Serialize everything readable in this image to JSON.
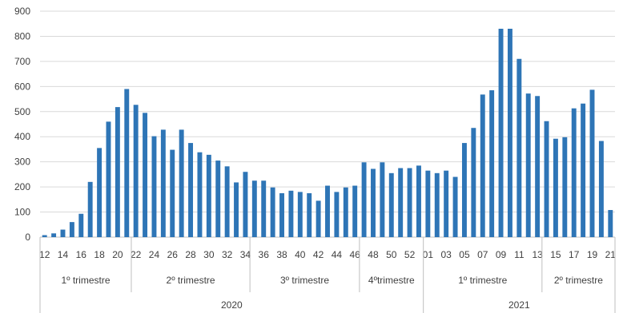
{
  "chart_data": {
    "type": "bar",
    "title": "",
    "xlabel": "",
    "ylabel": "",
    "ylim": [
      0,
      900
    ],
    "y_ticks": [
      0,
      100,
      200,
      300,
      400,
      500,
      600,
      700,
      800,
      900
    ],
    "grid": true,
    "legend": "none",
    "bar_color": "#2e75b6",
    "categories": [
      "12",
      "13",
      "14",
      "15",
      "16",
      "17",
      "18",
      "19",
      "20",
      "21",
      "22",
      "23",
      "24",
      "25",
      "26",
      "27",
      "28",
      "29",
      "30",
      "31",
      "32",
      "33",
      "34",
      "35",
      "36",
      "37",
      "38",
      "39",
      "40",
      "41",
      "42",
      "43",
      "44",
      "45",
      "46",
      "47",
      "48",
      "49",
      "50",
      "51",
      "52",
      "53",
      "01",
      "02",
      "03",
      "04",
      "05",
      "06",
      "07",
      "08",
      "09",
      "10",
      "11",
      "12",
      "13",
      "14",
      "15",
      "16",
      "17",
      "18",
      "19",
      "20",
      "21"
    ],
    "x_tick_labels": [
      "12",
      "14",
      "16",
      "18",
      "20",
      "22",
      "24",
      "26",
      "28",
      "30",
      "32",
      "34",
      "36",
      "38",
      "40",
      "42",
      "44",
      "46",
      "48",
      "50",
      "52",
      "01",
      "03",
      "05",
      "07",
      "09",
      "11",
      "13",
      "15",
      "17",
      "19",
      "21"
    ],
    "values": [
      8,
      15,
      30,
      60,
      93,
      220,
      355,
      460,
      518,
      590,
      527,
      495,
      402,
      428,
      348,
      428,
      375,
      338,
      328,
      305,
      282,
      218,
      260,
      225,
      225,
      198,
      175,
      185,
      180,
      175,
      145,
      205,
      180,
      198,
      205,
      298,
      272,
      298,
      255,
      275,
      275,
      285,
      265,
      255,
      265,
      240,
      375,
      435,
      568,
      585,
      830,
      830,
      710,
      572,
      562,
      462,
      392,
      398,
      513,
      532,
      587,
      383,
      108
    ],
    "groups": [
      {
        "label": "1º trimestre",
        "start": 0,
        "end": 9
      },
      {
        "label": "2º trimestre",
        "start": 10,
        "end": 22
      },
      {
        "label": "3º trimestre",
        "start": 23,
        "end": 34
      },
      {
        "label": "4ºtrimestre",
        "start": 35,
        "end": 41
      },
      {
        "label": "1º trimestre",
        "start": 42,
        "end": 54
      },
      {
        "label": "2º trimestre",
        "start": 55,
        "end": 62
      }
    ],
    "years": [
      {
        "label": "2020",
        "start": 0,
        "end": 41
      },
      {
        "label": "2021",
        "start": 42,
        "end": 62
      }
    ]
  }
}
